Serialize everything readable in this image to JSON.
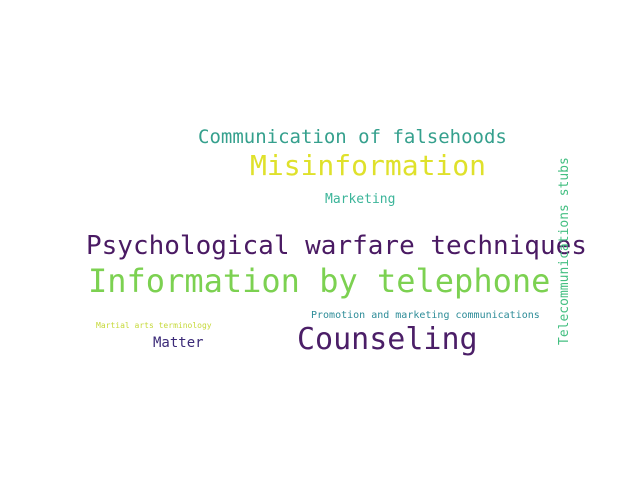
{
  "words": [
    {
      "text": "Communication of falsehoods",
      "color": "#35a08d"
    },
    {
      "text": "Misinformation",
      "color": "#dfe12b"
    },
    {
      "text": "Marketing",
      "color": "#3cb59a"
    },
    {
      "text": "Psychological warfare techniques",
      "color": "#4a1a63"
    },
    {
      "text": "Information by telephone",
      "color": "#7cd151"
    },
    {
      "text": "Promotion and marketing communications",
      "color": "#2d8c98"
    },
    {
      "text": "Martial arts terminology",
      "color": "#c6d93a"
    },
    {
      "text": "Matter",
      "color": "#3b2a78"
    },
    {
      "text": "Counseling",
      "color": "#4b1e67"
    },
    {
      "text": "Telecommunications stubs",
      "color": "#43bf81"
    }
  ]
}
